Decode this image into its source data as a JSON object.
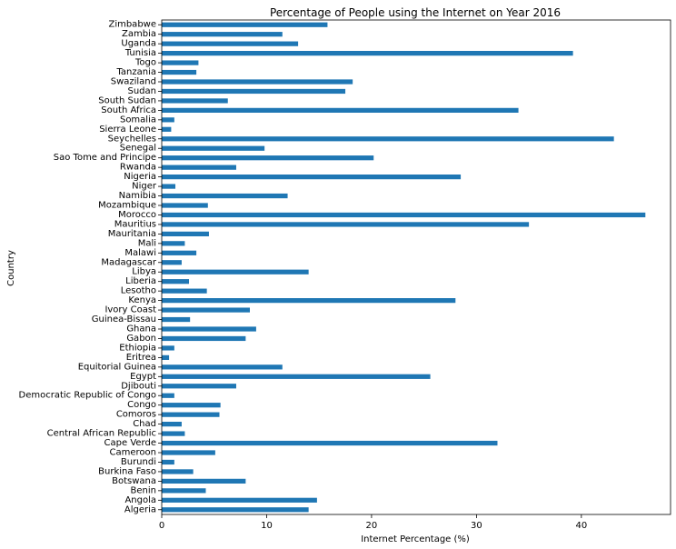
{
  "chart_data": {
    "type": "bar",
    "orientation": "horizontal",
    "title": "Percentage of People using the Internet on Year 2016",
    "xlabel": "Internet Percentage (%)",
    "ylabel": "Country",
    "xlim": [
      0,
      48.5
    ],
    "xticks": [
      0,
      10,
      20,
      30,
      40
    ],
    "grid": false,
    "bar_color": "#1f77b4",
    "categories": [
      "Algeria",
      "Angola",
      "Benin",
      "Botswana",
      "Burkina Faso",
      "Burundi",
      "Cameroon",
      "Cape Verde",
      "Central African Republic",
      "Chad",
      "Comoros",
      "Congo",
      "Democratic Republic of Congo",
      "Djibouti",
      "Egypt",
      "Equitorial Guinea",
      "Eritrea",
      "Ethiopia",
      "Gabon",
      "Ghana",
      "Guinea-Bissau",
      "Ivory Coast",
      "Kenya",
      "Lesotho",
      "Liberia",
      "Libya",
      "Madagascar",
      "Malawi",
      "Mali",
      "Mauritania",
      "Mauritius",
      "Morocco",
      "Mozambique",
      "Namibia",
      "Niger",
      "Nigeria",
      "Rwanda",
      "Sao Tome and Principe",
      "Senegal",
      "Seychelles",
      "Sierra Leone",
      "Somalia",
      "South Africa",
      "South Sudan",
      "Sudan",
      "Swaziland",
      "Tanzania",
      "Togo",
      "Tunisia",
      "Uganda",
      "Zambia",
      "Zimbabwe"
    ],
    "values": [
      14.0,
      14.8,
      4.2,
      8.0,
      3.0,
      1.2,
      5.1,
      32.0,
      2.2,
      1.9,
      5.5,
      5.6,
      1.2,
      7.1,
      25.6,
      11.5,
      0.7,
      1.2,
      8.0,
      9.0,
      2.7,
      8.4,
      28.0,
      4.3,
      2.6,
      14.0,
      1.9,
      3.3,
      2.2,
      4.5,
      35.0,
      46.1,
      4.4,
      12.0,
      1.3,
      28.5,
      7.1,
      20.2,
      9.8,
      43.1,
      0.9,
      1.2,
      34.0,
      6.3,
      17.5,
      18.2,
      3.3,
      3.5,
      39.2,
      13.0,
      11.5,
      15.8
    ]
  }
}
